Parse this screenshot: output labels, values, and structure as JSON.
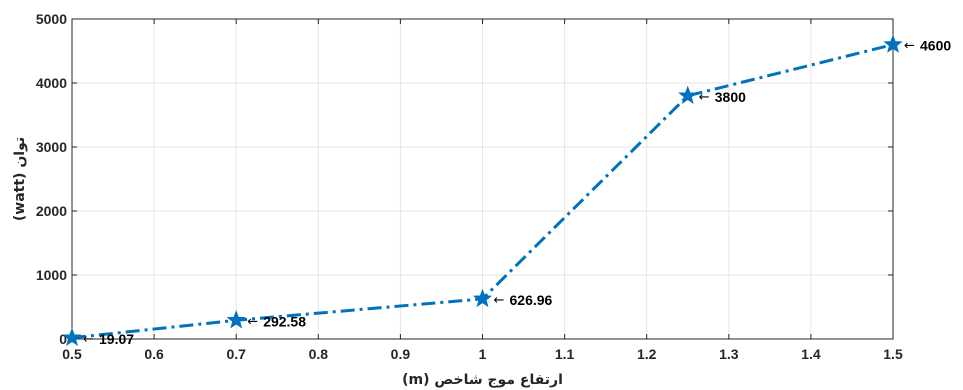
{
  "chart_data": {
    "type": "line",
    "title": "",
    "xlabel": "ارتفاع موج شاخص (m)",
    "ylabel": "توان (watt)",
    "x": [
      0.5,
      0.7,
      1.0,
      1.25,
      1.5
    ],
    "series": [
      {
        "values": [
          19.07,
          292.58,
          626.96,
          3800,
          4600
        ],
        "labels": [
          "19.07",
          "292.58",
          "626.96",
          "3800",
          "4600"
        ],
        "color": "#0072BD",
        "marker": "star",
        "line_style": "dash-dot"
      }
    ],
    "xlim": [
      0.5,
      1.5
    ],
    "ylim": [
      0,
      5000
    ],
    "xticks": [
      0.5,
      0.6,
      0.7,
      0.8,
      0.9,
      1,
      1.1,
      1.2,
      1.3,
      1.4,
      1.5
    ],
    "yticks": [
      0,
      1000,
      2000,
      3000,
      4000,
      5000
    ],
    "grid": true,
    "annotation_arrow": "←"
  }
}
